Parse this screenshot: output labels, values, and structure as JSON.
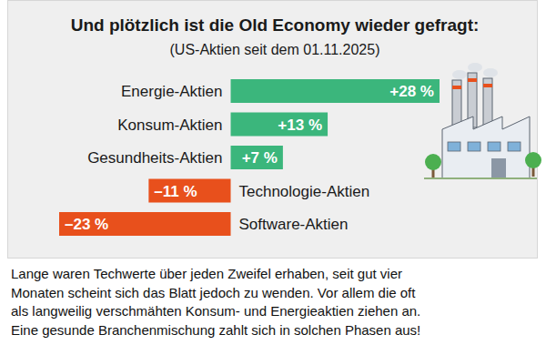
{
  "chart_data": {
    "type": "bar",
    "title": "Und plötzlich ist die Old Economy wieder gefragt:",
    "subtitle": "(US-Aktien seit dem 01.11.2025)",
    "orientation": "horizontal",
    "categories": [
      "Energie-Aktien",
      "Konsum-Aktien",
      "Gesundheits-Aktien",
      "Technologie-Aktien",
      "Software-Aktien"
    ],
    "values": [
      28,
      13,
      7,
      -11,
      -23
    ],
    "value_labels": [
      "+28 %",
      "+13 %",
      "+7 %",
      "–11 %",
      "–23 %"
    ],
    "colors": [
      "#3bb67c",
      "#3bb67c",
      "#3bb67c",
      "#e8501c",
      "#e8501c"
    ],
    "xlim": [
      -23,
      28
    ],
    "data_labels": true,
    "tick_labels": false,
    "caption": [
      "Lange waren Techwerte über jeden Zweifel erhaben, seit gut vier",
      "Monaten scheint sich das Blatt jedoch zu wenden. Vor allem die oft",
      "als langweilig verschmähten Konsum- und Energieaktien ziehen an.",
      "Eine gesunde Branchenmischung zahlt sich in solchen Phasen aus!"
    ]
  }
}
